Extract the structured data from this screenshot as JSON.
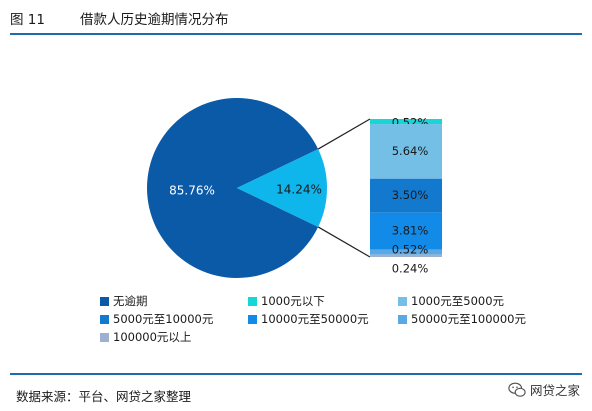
{
  "header": {
    "figure_number": "图 11",
    "title": "借款人历史逾期情况分布"
  },
  "footer": {
    "source": "数据来源：平台、网贷之家整理"
  },
  "watermark": {
    "text": "网贷之家",
    "icon": "wechat-icon"
  },
  "chart_data": {
    "type": "pie",
    "title": "借款人历史逾期情况分布",
    "pie": {
      "slices": [
        {
          "name": "无逾期",
          "value": 85.76,
          "label": "85.76%",
          "color": "#0b5aa7"
        },
        {
          "name": "逾期",
          "value": 14.24,
          "label": "14.24%",
          "color": "#0eb6ec"
        }
      ]
    },
    "breakdown": {
      "of": "14.24%",
      "segments": [
        {
          "name": "1000元以下",
          "value": 0.52,
          "label": "0.52%",
          "color": "#17d6d6"
        },
        {
          "name": "1000元至5000元",
          "value": 5.64,
          "label": "5.64%",
          "color": "#74bfe6"
        },
        {
          "name": "5000元至10000元",
          "value": 3.5,
          "label": "3.50%",
          "color": "#1279cf"
        },
        {
          "name": "10000元至50000元",
          "value": 3.81,
          "label": "3.81%",
          "color": "#128ae8"
        },
        {
          "name": "50000元至100000元",
          "value": 0.52,
          "label": "0.52%",
          "color": "#5aa9e4"
        },
        {
          "name": "100000元以上",
          "value": 0.24,
          "label": "0.24%",
          "color": "#9db0cf"
        }
      ]
    },
    "legend": [
      {
        "name": "无逾期",
        "color": "#0b5aa7"
      },
      {
        "name": "1000元以下",
        "color": "#17d6d6"
      },
      {
        "name": "1000元至5000元",
        "color": "#74bfe6"
      },
      {
        "name": "5000元至10000元",
        "color": "#1279cf"
      },
      {
        "name": "10000元至50000元",
        "color": "#128ae8"
      },
      {
        "name": "50000元至100000元",
        "color": "#5aa9e4"
      },
      {
        "name": "100000元以上",
        "color": "#9db0cf"
      }
    ],
    "legend_position": "bottom"
  }
}
